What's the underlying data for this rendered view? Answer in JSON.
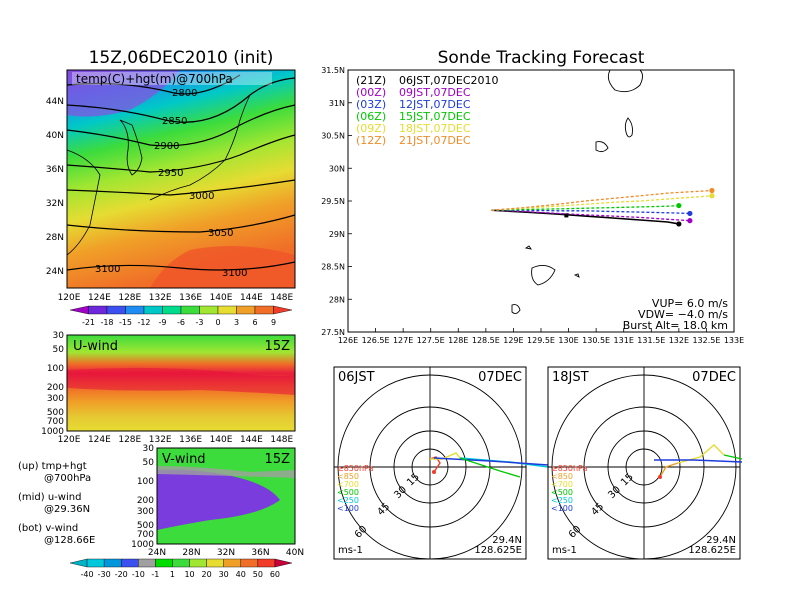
{
  "left_panel": {
    "title": "15Z,06DEC2010 (init)",
    "map_label": "temp(C)+hgt(m)@700hPa",
    "contour_labels": [
      "2800",
      "2850",
      "2900",
      "2950",
      "3000",
      "3050",
      "3100",
      "3100"
    ],
    "lon_ticks": [
      "120E",
      "124E",
      "128E",
      "132E",
      "136E",
      "140E",
      "144E",
      "148E"
    ],
    "lat_ticks": [
      "44N",
      "40N",
      "36N",
      "32N",
      "28N",
      "24N"
    ],
    "colorbar_labels": [
      "-21",
      "-18",
      "-15",
      "-12",
      "-9",
      "-6",
      "-3",
      "0",
      "3",
      "6",
      "9"
    ],
    "colorbar_colors": [
      "#a000c8",
      "#6e28dc",
      "#3c50f0",
      "#1e8cf0",
      "#00c8c8",
      "#00dc8c",
      "#3cdc3c",
      "#a0e632",
      "#e6dc32",
      "#f0a028",
      "#f06e28",
      "#f03c28"
    ]
  },
  "uwind_panel": {
    "label": "U-wind",
    "time": "15Z",
    "p_ticks": [
      "30",
      "50",
      "100",
      "200",
      "300",
      "500",
      "700",
      "1000"
    ],
    "lon_ticks": [
      "120E",
      "124E",
      "128E",
      "132E",
      "136E",
      "140E",
      "144E",
      "148E"
    ]
  },
  "vwind_panel": {
    "label": "V-wind",
    "time": "15Z",
    "p_ticks": [
      "30",
      "50",
      "100",
      "200",
      "300",
      "500",
      "700",
      "1000"
    ],
    "lat_ticks": [
      "24N",
      "28N",
      "32N",
      "36N",
      "40N"
    ],
    "colorbar_labels": [
      "-40",
      "-30",
      "-20",
      "-10",
      "-1",
      "1",
      "10",
      "20",
      "30",
      "40",
      "50",
      "60"
    ],
    "colorbar_colors": [
      "#00b4c8",
      "#00c8dc",
      "#0096dc",
      "#3c50f0",
      "#a0a0a0",
      "#00dc00",
      "#3cdc3c",
      "#a0e632",
      "#e6dc32",
      "#f0a028",
      "#f06e28",
      "#f03c28",
      "#c8003c"
    ]
  },
  "legend_notes": [
    {
      "line1": "(up) tmp+hgt",
      "line2": "@700hPa"
    },
    {
      "line1": "(mid) u-wind",
      "line2": "@29.36N"
    },
    {
      "line1": "(bot) v-wind",
      "line2": "@128.66E"
    }
  ],
  "tracking": {
    "title": "Sonde Tracking Forecast",
    "lon_ticks": [
      "126E",
      "126.5E",
      "127E",
      "127.5E",
      "128E",
      "128.5E",
      "129E",
      "129.5E",
      "130E",
      "130.5E",
      "131E",
      "131.5E",
      "132E",
      "132.5E",
      "133E"
    ],
    "lat_ticks": [
      "31.5N",
      "31N",
      "30.5N",
      "30N",
      "29.5N",
      "29N",
      "28.5N",
      "28N",
      "27.5N"
    ],
    "launches": [
      {
        "code": "(21Z)",
        "label": "06JST,07DEC2010",
        "color": "#000000"
      },
      {
        "code": "(00Z)",
        "label": "09JST,07DEC",
        "color": "#a000c8"
      },
      {
        "code": "(03Z)",
        "label": "12JST,07DEC",
        "color": "#1e3cdc"
      },
      {
        "code": "(06Z)",
        "label": "15JST,07DEC",
        "color": "#00c800"
      },
      {
        "code": "(09Z)",
        "label": "18JST,07DEC",
        "color": "#e6dc32"
      },
      {
        "code": "(12Z)",
        "label": "21JST,07DEC",
        "color": "#f08c28"
      }
    ],
    "vup": "VUP=  6.0  m/s",
    "vdw": "VDW= −4.0  m/s",
    "burst": "Burst Alt=  18.0  km"
  },
  "chart_data": [
    {
      "type": "line",
      "title": "Sonde Tracking Forecast",
      "xlim": [
        126,
        133
      ],
      "ylim": [
        27.5,
        31.5
      ],
      "series": [
        {
          "name": "(21Z) 06JST,07DEC2010",
          "x": [
            128.6,
            129.2,
            129.8,
            130.3,
            130.8,
            131.3,
            131.8,
            132.0
          ],
          "y": [
            29.36,
            29.33,
            29.3,
            29.27,
            29.24,
            29.21,
            29.18,
            29.15
          ]
        },
        {
          "name": "(00Z) 09JST,07DEC",
          "x": [
            128.6,
            129.2,
            129.8,
            130.3,
            130.8,
            131.3,
            131.8,
            132.2
          ],
          "y": [
            29.36,
            29.34,
            29.31,
            29.29,
            29.27,
            29.25,
            29.22,
            29.2
          ]
        },
        {
          "name": "(03Z) 12JST,07DEC",
          "x": [
            128.6,
            129.2,
            129.8,
            130.3,
            130.8,
            131.3,
            131.8,
            132.2
          ],
          "y": [
            29.36,
            29.36,
            29.35,
            29.35,
            29.34,
            29.33,
            29.32,
            29.31
          ]
        },
        {
          "name": "(06Z) 15JST,07DEC",
          "x": [
            128.6,
            129.2,
            129.8,
            130.3,
            130.8,
            131.3,
            131.8,
            132.0
          ],
          "y": [
            29.36,
            29.37,
            29.38,
            29.39,
            29.4,
            29.41,
            29.42,
            29.43
          ]
        },
        {
          "name": "(09Z) 18JST,07DEC",
          "x": [
            128.6,
            129.2,
            129.8,
            130.3,
            130.8,
            131.3,
            131.8,
            132.6
          ],
          "y": [
            29.36,
            29.39,
            29.42,
            29.45,
            29.48,
            29.5,
            29.53,
            29.58
          ]
        },
        {
          "name": "(12Z) 21JST,07DEC",
          "x": [
            128.6,
            129.2,
            129.8,
            130.3,
            130.8,
            131.3,
            131.8,
            132.6
          ],
          "y": [
            29.36,
            29.4,
            29.45,
            29.5,
            29.54,
            29.58,
            29.62,
            29.66
          ]
        }
      ]
    }
  ],
  "polar_left": {
    "time": "06JST",
    "date": "07DEC",
    "ring_labels": [
      "15",
      "30",
      "45",
      "60"
    ],
    "units": "ms-1",
    "lat": "29.4N",
    "lon": "128.625E",
    "levels": [
      {
        "label": "≥850hPa",
        "color": "#f03c28"
      },
      {
        "label": "<850",
        "color": "#f0a028"
      },
      {
        "label": "<700",
        "color": "#e6dc32"
      },
      {
        "label": "<500",
        "color": "#00c800"
      },
      {
        "label": "<250",
        "color": "#00c8dc"
      },
      {
        "label": "<100",
        "color": "#1e3cdc"
      }
    ]
  },
  "polar_right": {
    "time": "18JST",
    "date": "07DEC",
    "ring_labels": [
      "15",
      "30",
      "45",
      "60"
    ],
    "units": "ms-1",
    "lat": "29.4N",
    "lon": "128.625E",
    "levels": [
      {
        "label": "≥850hPa",
        "color": "#f03c28"
      },
      {
        "label": "<850",
        "color": "#f0a028"
      },
      {
        "label": "<700",
        "color": "#e6dc32"
      },
      {
        "label": "<500",
        "color": "#00c800"
      },
      {
        "label": "<250",
        "color": "#00c8dc"
      },
      {
        "label": "<100",
        "color": "#1e3cdc"
      }
    ]
  }
}
